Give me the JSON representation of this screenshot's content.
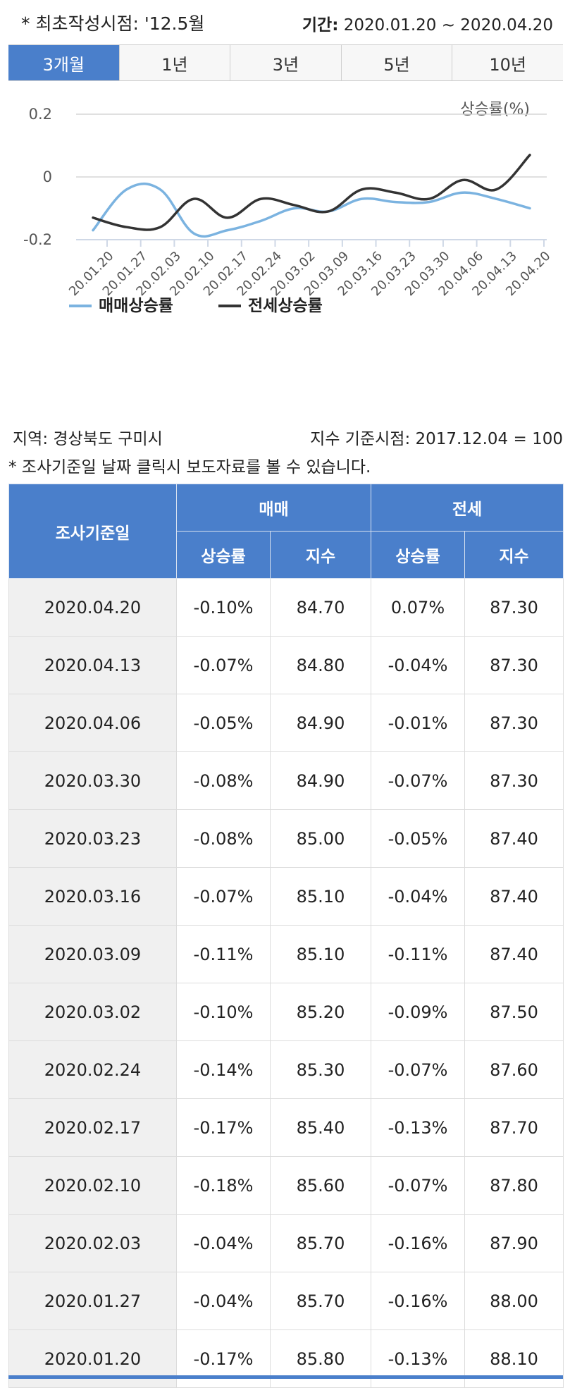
{
  "header": {
    "note": "* 최초작성시점: '12.5월",
    "period_label": "기간:",
    "period_value": "2020.01.20 ~ 2020.04.20"
  },
  "tabs": [
    {
      "label": "3개월",
      "active": true
    },
    {
      "label": "1년",
      "active": false
    },
    {
      "label": "3년",
      "active": false
    },
    {
      "label": "5년",
      "active": false
    },
    {
      "label": "10년",
      "active": false
    }
  ],
  "chart_data": {
    "type": "line",
    "title": "",
    "xlabel": "",
    "ylabel": "상승률(%)",
    "ylim": [
      -0.2,
      0.2
    ],
    "yticks": [
      "0.2",
      "0",
      "-0.2"
    ],
    "ytick_values": [
      0.2,
      0,
      -0.2
    ],
    "categories": [
      "20.01.20",
      "20.01.27",
      "20.02.03",
      "20.02.10",
      "20.02.17",
      "20.02.24",
      "20.03.02",
      "20.03.09",
      "20.03.16",
      "20.03.23",
      "20.03.30",
      "20.04.06",
      "20.04.13",
      "20.04.20"
    ],
    "series": [
      {
        "name": "매매상승률",
        "color": "#7bb3e0",
        "values": [
          -0.17,
          -0.04,
          -0.04,
          -0.18,
          -0.17,
          -0.14,
          -0.1,
          -0.11,
          -0.07,
          -0.08,
          -0.08,
          -0.05,
          -0.07,
          -0.1
        ]
      },
      {
        "name": "전세상승률",
        "color": "#333333",
        "values": [
          -0.13,
          -0.16,
          -0.16,
          -0.07,
          -0.13,
          -0.07,
          -0.09,
          -0.11,
          -0.04,
          -0.05,
          -0.07,
          -0.01,
          -0.04,
          0.07
        ]
      }
    ],
    "grid": true,
    "legend": "bottom"
  },
  "meta": {
    "region": "지역: 경상북도 구미시",
    "basis": "지수 기준시점: 2017.12.04 = 100",
    "hint": "* 조사기준일 날짜 클릭시 보도자료를 볼 수 있습니다."
  },
  "table": {
    "col_date": "조사기준일",
    "group_sale": "매매",
    "group_lease": "전세",
    "col_rate": "상승률",
    "col_index": "지수",
    "rows": [
      {
        "date": "2020.04.20",
        "sale_rate": "-0.10%",
        "sale_index": "84.70",
        "lease_rate": "0.07%",
        "lease_index": "87.30"
      },
      {
        "date": "2020.04.13",
        "sale_rate": "-0.07%",
        "sale_index": "84.80",
        "lease_rate": "-0.04%",
        "lease_index": "87.30"
      },
      {
        "date": "2020.04.06",
        "sale_rate": "-0.05%",
        "sale_index": "84.90",
        "lease_rate": "-0.01%",
        "lease_index": "87.30"
      },
      {
        "date": "2020.03.30",
        "sale_rate": "-0.08%",
        "sale_index": "84.90",
        "lease_rate": "-0.07%",
        "lease_index": "87.30"
      },
      {
        "date": "2020.03.23",
        "sale_rate": "-0.08%",
        "sale_index": "85.00",
        "lease_rate": "-0.05%",
        "lease_index": "87.40"
      },
      {
        "date": "2020.03.16",
        "sale_rate": "-0.07%",
        "sale_index": "85.10",
        "lease_rate": "-0.04%",
        "lease_index": "87.40"
      },
      {
        "date": "2020.03.09",
        "sale_rate": "-0.11%",
        "sale_index": "85.10",
        "lease_rate": "-0.11%",
        "lease_index": "87.40"
      },
      {
        "date": "2020.03.02",
        "sale_rate": "-0.10%",
        "sale_index": "85.20",
        "lease_rate": "-0.09%",
        "lease_index": "87.50"
      },
      {
        "date": "2020.02.24",
        "sale_rate": "-0.14%",
        "sale_index": "85.30",
        "lease_rate": "-0.07%",
        "lease_index": "87.60"
      },
      {
        "date": "2020.02.17",
        "sale_rate": "-0.17%",
        "sale_index": "85.40",
        "lease_rate": "-0.13%",
        "lease_index": "87.70"
      },
      {
        "date": "2020.02.10",
        "sale_rate": "-0.18%",
        "sale_index": "85.60",
        "lease_rate": "-0.07%",
        "lease_index": "87.80"
      },
      {
        "date": "2020.02.03",
        "sale_rate": "-0.04%",
        "sale_index": "85.70",
        "lease_rate": "-0.16%",
        "lease_index": "87.90"
      },
      {
        "date": "2020.01.27",
        "sale_rate": "-0.04%",
        "sale_index": "85.70",
        "lease_rate": "-0.16%",
        "lease_index": "88.00"
      },
      {
        "date": "2020.01.20",
        "sale_rate": "-0.17%",
        "sale_index": "85.80",
        "lease_rate": "-0.13%",
        "lease_index": "88.10"
      }
    ]
  }
}
